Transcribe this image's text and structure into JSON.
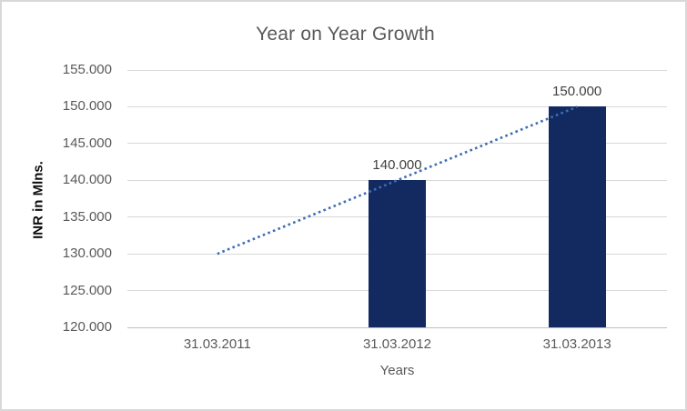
{
  "chart_data": {
    "type": "bar",
    "title": "Year on Year Growth",
    "xlabel": "Years",
    "ylabel": "INR in Mlns.",
    "categories": [
      "31.03.2011",
      "31.03.2012",
      "31.03.2013"
    ],
    "series": [
      {
        "name": "yearly-values",
        "type": "bar",
        "values": [
          null,
          140,
          150
        ],
        "data_labels": [
          "",
          "140.000",
          "150.000"
        ],
        "color": "#122a60"
      },
      {
        "name": "linear-trendline",
        "type": "line",
        "line_style": "dotted",
        "values": [
          130,
          140,
          150
        ],
        "color": "#3e6cb5"
      }
    ],
    "y_axis": {
      "min": 120,
      "max": 155,
      "step": 5,
      "tick_labels": [
        "155.000",
        "150.000",
        "145.000",
        "140.000",
        "135.000",
        "130.000",
        "125.000",
        "120.000"
      ],
      "tick_values": [
        155,
        150,
        145,
        140,
        135,
        130,
        125,
        120
      ]
    },
    "grid": true,
    "legend_position": "none",
    "colors": {
      "title_text": "#595959",
      "tick_text": "#595959",
      "data_label_text": "#404040",
      "gridline": "#d9d9d9",
      "axis_line": "#bfbfbf",
      "chart_border": "#d8d8d8",
      "background": "#ffffff"
    }
  }
}
